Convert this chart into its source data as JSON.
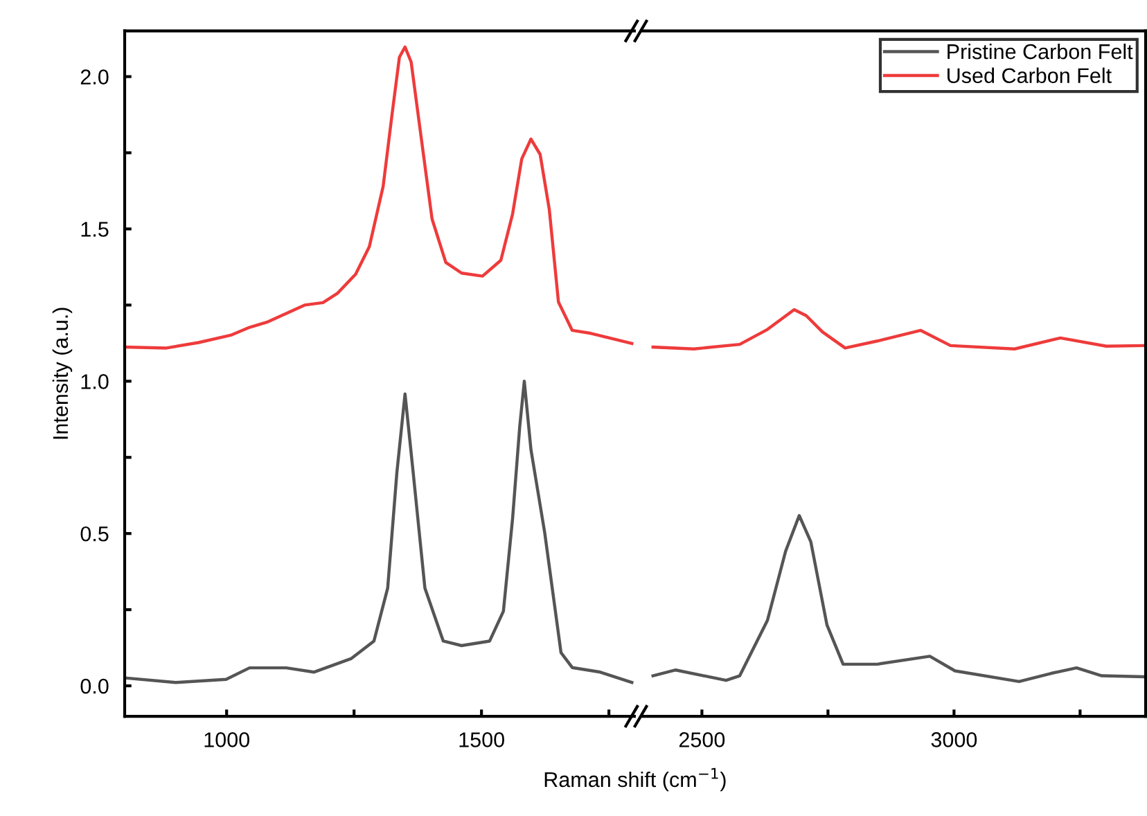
{
  "chart_data": [
    {
      "type": "line",
      "xlabel": "Raman shift (cm$^{−1}$)",
      "ylabel": "Intensity (a.u.)",
      "xlim": [
        800,
        1800
      ],
      "ylim": [
        -0.1,
        2.15
      ],
      "xticks": [
        1000,
        {
          "value": 1250,
          "label": null
        },
        1500,
        {
          "value": 1750,
          "label": null
        }
      ],
      "yticks": [
        {
          "value": 0,
          "label": "0.0"
        },
        {
          "value": 0.25,
          "label": null
        },
        0.5,
        {
          "value": 0.75,
          "label": null
        },
        {
          "value": 1,
          "label": "1.0"
        },
        {
          "value": 1.25,
          "label": null
        },
        1.5,
        {
          "value": 1.75,
          "label": null
        },
        {
          "value": 2,
          "label": "2.0"
        }
      ],
      "grid": false,
      "legend": false,
      "marker": "none",
      "line_style": "solid",
      "series": [
        {
          "color": "#555555",
          "x": [
            800,
            900,
            999,
            1045,
            1117,
            1171,
            1244,
            1289,
            1316,
            1334,
            1350,
            1366,
            1389,
            1425,
            1461,
            1516,
            1543,
            1561,
            1575,
            1584,
            1597,
            1624,
            1656,
            1678,
            1733,
            1795
          ],
          "values": [
            0.026,
            0.011,
            0.021,
            0.059,
            0.059,
            0.045,
            0.089,
            0.147,
            0.321,
            0.7,
            0.958,
            0.7,
            0.321,
            0.147,
            0.132,
            0.147,
            0.245,
            0.549,
            0.851,
            1.0,
            0.776,
            0.503,
            0.109,
            0.06,
            0.045,
            0.011
          ]
        },
        {
          "color": "#ee3b3b",
          "x": [
            800,
            882,
            945,
            1008,
            1045,
            1081,
            1153,
            1189,
            1217,
            1253,
            1280,
            1307,
            1325,
            1339,
            1350,
            1362,
            1380,
            1403,
            1430,
            1461,
            1502,
            1538,
            1561,
            1579,
            1597,
            1615,
            1633,
            1651,
            1678,
            1715,
            1751,
            1795
          ],
          "values": [
            1.112,
            1.109,
            1.127,
            1.151,
            1.177,
            1.195,
            1.25,
            1.258,
            1.288,
            1.351,
            1.442,
            1.639,
            1.882,
            2.064,
            2.097,
            2.048,
            1.821,
            1.533,
            1.39,
            1.355,
            1.345,
            1.397,
            1.549,
            1.73,
            1.795,
            1.745,
            1.564,
            1.26,
            1.167,
            1.157,
            1.142,
            1.124
          ]
        }
      ]
    },
    {
      "type": "line",
      "xlim": [
        2380,
        3380
      ],
      "ylim": [
        -0.1,
        2.15
      ],
      "xticks": [
        2500,
        {
          "value": 2750,
          "label": null
        },
        3000,
        {
          "value": 3250,
          "label": null
        }
      ],
      "tick_labels": "x",
      "grid": false,
      "legend": "top right",
      "marker": "none",
      "line_style": "solid",
      "series": [
        {
          "name": "Pristine Carbon Felt",
          "color": "#555555",
          "x": [
            2403,
            2448,
            2548,
            2575,
            2630,
            2666,
            2693,
            2716,
            2748,
            2780,
            2848,
            2952,
            3002,
            3129,
            3193,
            3243,
            3293,
            3375
          ],
          "values": [
            0.033,
            0.052,
            0.018,
            0.033,
            0.215,
            0.442,
            0.559,
            0.473,
            0.2,
            0.071,
            0.071,
            0.097,
            0.049,
            0.014,
            0.041,
            0.059,
            0.033,
            0.03
          ]
        },
        {
          "name": "Used Carbon Felt",
          "color": "#ee3b3b",
          "x": [
            2403,
            2484,
            2575,
            2630,
            2683,
            2707,
            2739,
            2784,
            2848,
            2934,
            2993,
            3120,
            3211,
            3302,
            3375
          ],
          "values": [
            1.112,
            1.106,
            1.121,
            1.17,
            1.235,
            1.215,
            1.162,
            1.109,
            1.132,
            1.167,
            1.117,
            1.106,
            1.142,
            1.115,
            1.117
          ]
        }
      ]
    }
  ]
}
